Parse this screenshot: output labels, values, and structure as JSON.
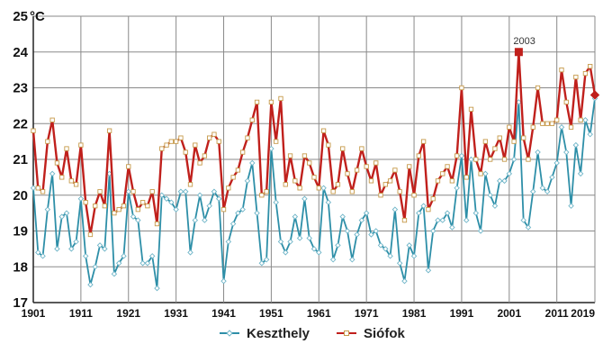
{
  "chart_data": {
    "type": "line",
    "title": "",
    "unit_label": "°C",
    "ylim": [
      17,
      25
    ],
    "yticks": [
      17,
      18,
      19,
      20,
      21,
      22,
      23,
      24,
      25
    ],
    "xlim": [
      1901,
      2019
    ],
    "xticks": [
      1901,
      1911,
      1921,
      1931,
      1941,
      1951,
      1961,
      1971,
      1981,
      1991,
      2001,
      2011,
      2019
    ],
    "grid": true,
    "legend": "bottom",
    "annotations": [
      {
        "x": 2003,
        "label": "2003"
      }
    ],
    "series": [
      {
        "name": "Keszthely",
        "color": "#2e8fa8",
        "marker": "diamond",
        "x": [
          1901,
          1902,
          1903,
          1904,
          1905,
          1906,
          1907,
          1908,
          1909,
          1910,
          1911,
          1912,
          1913,
          1914,
          1915,
          1916,
          1917,
          1918,
          1919,
          1920,
          1921,
          1922,
          1923,
          1924,
          1925,
          1926,
          1927,
          1928,
          1929,
          1930,
          1931,
          1932,
          1933,
          1934,
          1935,
          1936,
          1937,
          1938,
          1939,
          1940,
          1941,
          1942,
          1943,
          1944,
          1945,
          1946,
          1947,
          1948,
          1949,
          1950,
          1951,
          1952,
          1953,
          1954,
          1955,
          1956,
          1957,
          1958,
          1959,
          1960,
          1961,
          1962,
          1963,
          1964,
          1965,
          1966,
          1967,
          1968,
          1969,
          1970,
          1971,
          1972,
          1973,
          1974,
          1975,
          1976,
          1977,
          1978,
          1979,
          1980,
          1981,
          1982,
          1983,
          1984,
          1985,
          1986,
          1987,
          1988,
          1989,
          1990,
          1991,
          1992,
          1993,
          1994,
          1995,
          1996,
          1997,
          1998,
          1999,
          2000,
          2001,
          2002,
          2003,
          2004,
          2005,
          2006,
          2007,
          2008,
          2009,
          2010,
          2011,
          2012,
          2013,
          2014,
          2015,
          2016,
          2017,
          2018,
          2019
        ],
        "values": [
          20.2,
          18.4,
          18.3,
          19.6,
          20.6,
          18.5,
          19.4,
          19.5,
          18.5,
          18.7,
          19.9,
          18.3,
          17.5,
          18.0,
          18.6,
          18.5,
          20.6,
          17.8,
          18.1,
          18.3,
          20.1,
          19.4,
          19.3,
          18.1,
          18.1,
          18.3,
          17.4,
          20.0,
          19.9,
          19.8,
          19.6,
          20.1,
          20.1,
          18.4,
          19.3,
          20.0,
          19.3,
          19.7,
          20.1,
          19.9,
          17.6,
          18.7,
          19.2,
          19.5,
          19.6,
          20.4,
          20.9,
          19.5,
          18.1,
          18.2,
          21.3,
          19.8,
          18.7,
          18.4,
          18.7,
          19.4,
          18.8,
          19.9,
          18.8,
          18.5,
          18.4,
          20.2,
          19.8,
          18.2,
          18.6,
          19.4,
          19.0,
          18.2,
          18.9,
          19.3,
          19.5,
          18.9,
          19.0,
          18.6,
          18.5,
          18.3,
          19.6,
          18.1,
          17.6,
          18.6,
          18.3,
          19.5,
          19.7,
          17.9,
          19.0,
          19.3,
          19.3,
          19.5,
          19.1,
          20.2,
          21.1,
          19.3,
          21.0,
          19.5,
          19.0,
          20.6,
          20.0,
          19.7,
          20.4,
          20.4,
          20.6,
          21.0,
          22.6,
          19.3,
          19.1,
          20.1,
          21.2,
          20.2,
          20.1,
          20.5,
          20.9,
          21.9,
          21.2,
          19.7,
          21.4,
          20.6,
          22.1,
          21.7,
          22.7
        ]
      },
      {
        "name": "Siófok",
        "color": "#c0201c",
        "marker": "square",
        "x": [
          1901,
          1902,
          1903,
          1904,
          1905,
          1906,
          1907,
          1908,
          1909,
          1910,
          1911,
          1912,
          1913,
          1914,
          1915,
          1916,
          1917,
          1918,
          1919,
          1920,
          1921,
          1922,
          1923,
          1924,
          1925,
          1926,
          1927,
          1928,
          1929,
          1930,
          1931,
          1932,
          1933,
          1934,
          1935,
          1936,
          1937,
          1938,
          1939,
          1940,
          1941,
          1942,
          1943,
          1944,
          1945,
          1946,
          1947,
          1948,
          1949,
          1950,
          1951,
          1952,
          1953,
          1954,
          1955,
          1956,
          1957,
          1958,
          1959,
          1960,
          1961,
          1962,
          1963,
          1964,
          1965,
          1966,
          1967,
          1968,
          1969,
          1970,
          1971,
          1972,
          1973,
          1974,
          1975,
          1976,
          1977,
          1978,
          1979,
          1980,
          1981,
          1982,
          1983,
          1984,
          1985,
          1986,
          1987,
          1988,
          1989,
          1990,
          1991,
          1992,
          1993,
          1994,
          1995,
          1996,
          1997,
          1998,
          1999,
          2000,
          2001,
          2002,
          2003,
          2004,
          2005,
          2006,
          2007,
          2008,
          2009,
          2010,
          2011,
          2012,
          2013,
          2014,
          2015,
          2016,
          2017,
          2018,
          2019
        ],
        "values": [
          21.8,
          20.2,
          20.1,
          21.5,
          22.1,
          20.9,
          20.5,
          21.3,
          20.4,
          20.3,
          21.4,
          19.8,
          18.9,
          19.7,
          20.1,
          19.7,
          21.8,
          19.5,
          19.6,
          19.7,
          20.8,
          20.1,
          19.6,
          19.8,
          19.7,
          20.1,
          19.2,
          21.3,
          21.4,
          21.5,
          21.5,
          21.6,
          21.2,
          20.3,
          21.4,
          20.9,
          21.1,
          21.6,
          21.7,
          21.5,
          19.6,
          20.2,
          20.5,
          20.7,
          21.2,
          21.6,
          22.1,
          22.6,
          20.0,
          20.1,
          22.6,
          21.5,
          22.7,
          20.3,
          21.1,
          20.4,
          20.2,
          21.1,
          20.9,
          20.5,
          20.2,
          21.8,
          21.4,
          20.1,
          20.3,
          21.3,
          20.6,
          20.1,
          20.7,
          21.3,
          20.8,
          20.4,
          20.9,
          20.0,
          20.3,
          20.4,
          20.7,
          20.1,
          19.3,
          20.8,
          20.0,
          21.1,
          21.5,
          19.6,
          19.9,
          20.4,
          20.6,
          20.8,
          20.4,
          21.1,
          23.0,
          20.5,
          22.4,
          21.0,
          20.6,
          21.5,
          21.0,
          21.3,
          21.6,
          21.0,
          21.9,
          21.5,
          24.0,
          21.6,
          21.0,
          21.9,
          23.0,
          22.0,
          22.0,
          22.0,
          22.1,
          23.5,
          22.6,
          21.9,
          23.3,
          22.1,
          23.4,
          23.6,
          22.8
        ]
      }
    ]
  }
}
